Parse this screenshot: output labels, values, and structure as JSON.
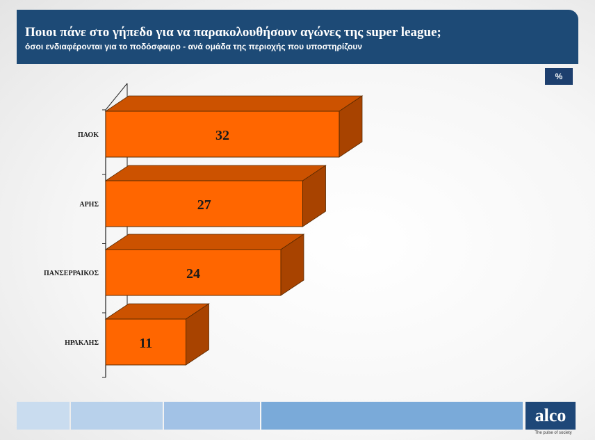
{
  "header": {
    "title": "Ποιοι πάνε στο γήπεδο για να παρακολουθήσουν αγώνες της super league;",
    "subtitle": "όσοι ενδιαφέρονται για το ποδόσφαιρο  - ανά ομάδα της περιοχής που υποστηρίζουν"
  },
  "unit_badge": "%",
  "chart_data": {
    "type": "bar",
    "orientation": "horizontal",
    "three_d": true,
    "categories": [
      "ΠΑΟΚ",
      "ΑΡΗΣ",
      "ΠΑΝΣΕΡΡΑΙΚΟΣ",
      "ΗΡΑΚΛΗΣ"
    ],
    "values": [
      32,
      27,
      24,
      11
    ],
    "data_labels": [
      "32",
      "27",
      "24",
      "11"
    ],
    "bar_color": "#ff6600",
    "bar_side_color": "#a84300",
    "bar_top_color": "#cc5200"
  },
  "footer": {
    "strip_colors": [
      "#c9dcef",
      "#b8d1eb",
      "#a2c2e6",
      "#7aaad9"
    ],
    "logo_text": "alco",
    "logo_tagline": "The pulse of society"
  }
}
